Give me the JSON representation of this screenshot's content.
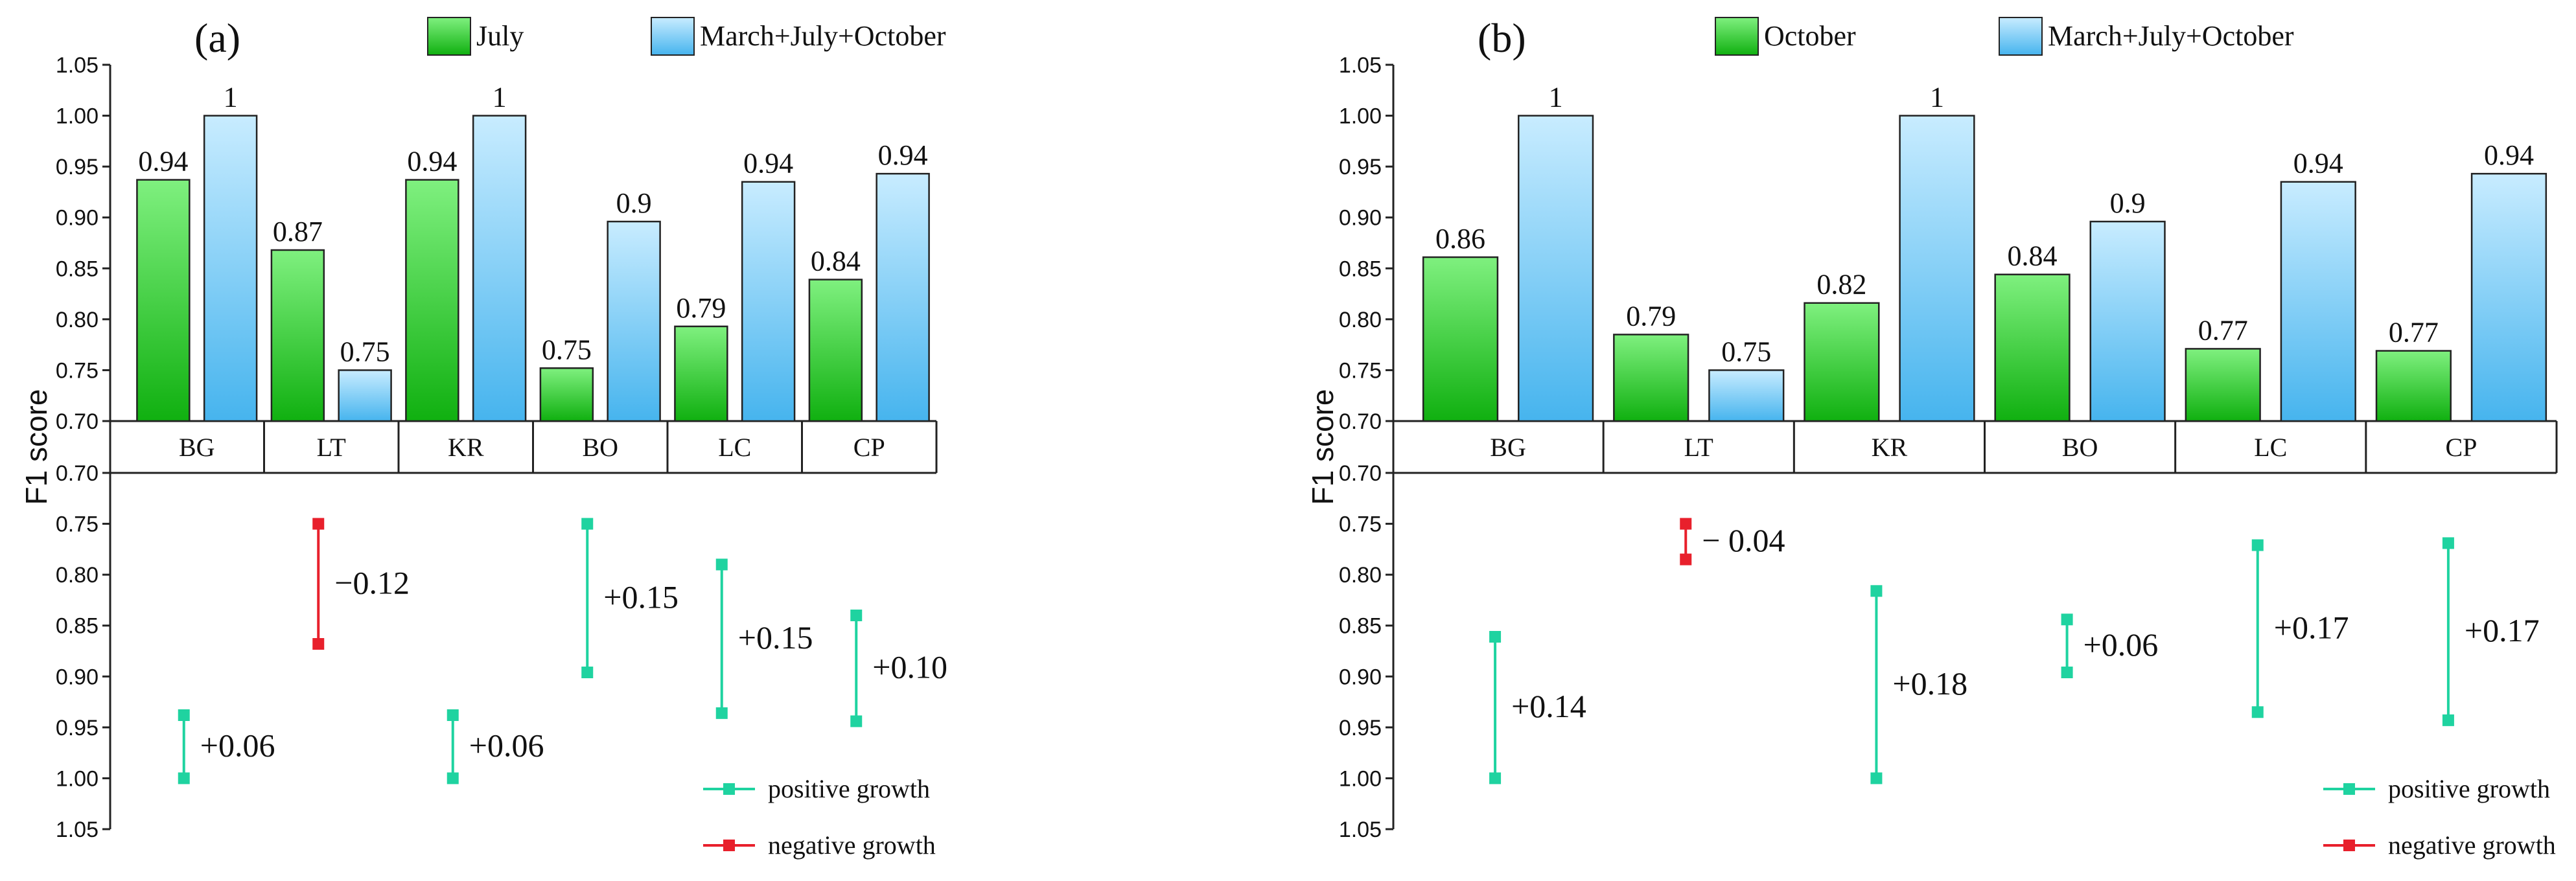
{
  "colors": {
    "bar_a_top": "#7ff07f",
    "bar_a_bottom": "#10b010",
    "bar_b_top": "#c8ecff",
    "bar_b_bottom": "#46b4ee",
    "positive": "#1fd3a0",
    "negative": "#e8202c"
  },
  "chart_data": [
    {
      "type": "bar",
      "panel_label": "(a)",
      "ylabel": "F1 score",
      "categories": [
        "BG",
        "LT",
        "KR",
        "BO",
        "LC",
        "CP"
      ],
      "ylim_top": [
        0.7,
        1.05
      ],
      "yticks_top": [
        "0.70",
        "0.75",
        "0.80",
        "0.85",
        "0.90",
        "0.95",
        "1.00",
        "1.05"
      ],
      "ylim_bottom": [
        0.7,
        1.05
      ],
      "yticks_bottom": [
        "0.70",
        "0.75",
        "0.80",
        "0.85",
        "0.90",
        "0.95",
        "1.00",
        "1.05"
      ],
      "series": [
        {
          "name": "July",
          "values": [
            0.937,
            0.868,
            0.937,
            0.752,
            0.793,
            0.839
          ],
          "labels": [
            "0.94",
            "0.87",
            "0.94",
            "0.75",
            "0.79",
            "0.84"
          ]
        },
        {
          "name": "March+July+October",
          "values": [
            1.0,
            0.75,
            1.0,
            0.896,
            0.935,
            0.943
          ],
          "labels": [
            "1",
            "0.75",
            "1",
            "0.9",
            "0.94",
            "0.94"
          ]
        }
      ],
      "differences": [
        {
          "from": 0.938,
          "to": 1.0,
          "label": "+0.06",
          "sign": "positive"
        },
        {
          "from": 0.75,
          "to": 0.868,
          "label": "−0.12",
          "sign": "negative"
        },
        {
          "from": 0.938,
          "to": 1.0,
          "label": "+0.06",
          "sign": "positive"
        },
        {
          "from": 0.75,
          "to": 0.896,
          "label": "+0.15",
          "sign": "positive"
        },
        {
          "from": 0.79,
          "to": 0.936,
          "label": "+0.15",
          "sign": "positive"
        },
        {
          "from": 0.84,
          "to": 0.944,
          "label": "+0.10",
          "sign": "positive"
        }
      ],
      "diff_legend": [
        "positive growth",
        "negative growth"
      ]
    },
    {
      "type": "bar",
      "panel_label": "(b)",
      "ylabel": "F1 score",
      "categories": [
        "BG",
        "LT",
        "KR",
        "BO",
        "LC",
        "CP"
      ],
      "ylim_top": [
        0.7,
        1.05
      ],
      "yticks_top": [
        "0.70",
        "0.75",
        "0.80",
        "0.85",
        "0.90",
        "0.95",
        "1.00",
        "1.05"
      ],
      "ylim_bottom": [
        0.7,
        1.05
      ],
      "yticks_bottom": [
        "0.70",
        "0.75",
        "0.80",
        "0.85",
        "0.90",
        "0.95",
        "1.00",
        "1.05"
      ],
      "series": [
        {
          "name": "October",
          "values": [
            0.861,
            0.785,
            0.816,
            0.844,
            0.771,
            0.769
          ],
          "labels": [
            "0.86",
            "0.79",
            "0.82",
            "0.84",
            "0.77",
            "0.77"
          ]
        },
        {
          "name": "March+July+October",
          "values": [
            1.0,
            0.75,
            1.0,
            0.896,
            0.935,
            0.943
          ],
          "labels": [
            "1",
            "0.75",
            "1",
            "0.9",
            "0.94",
            "0.94"
          ]
        }
      ],
      "differences": [
        {
          "from": 0.861,
          "to": 1.0,
          "label": "+0.14",
          "sign": "positive"
        },
        {
          "from": 0.75,
          "to": 0.785,
          "label": "− 0.04",
          "sign": "negative"
        },
        {
          "from": 0.816,
          "to": 1.0,
          "label": "+0.18",
          "sign": "positive"
        },
        {
          "from": 0.844,
          "to": 0.896,
          "label": "+0.06",
          "sign": "positive"
        },
        {
          "from": 0.771,
          "to": 0.935,
          "label": "+0.17",
          "sign": "positive"
        },
        {
          "from": 0.769,
          "to": 0.943,
          "label": "+0.17",
          "sign": "positive"
        }
      ],
      "diff_legend": [
        "positive growth",
        "negative growth"
      ]
    }
  ]
}
